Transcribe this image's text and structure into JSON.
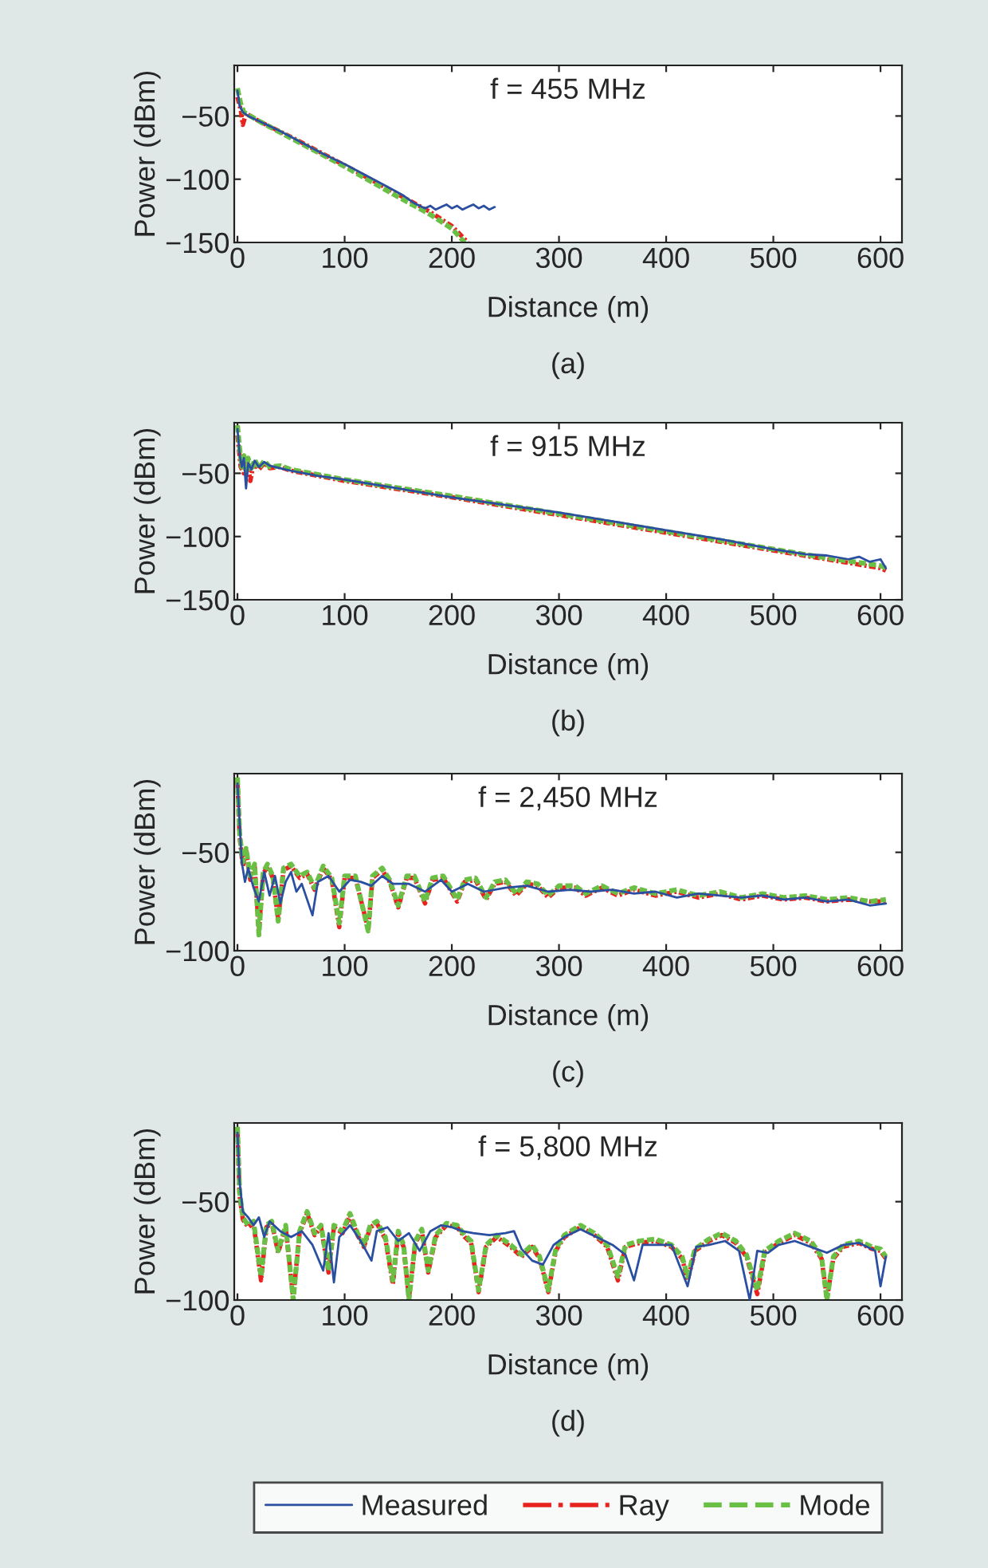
{
  "chart_data": [
    {
      "type": "line",
      "title": "f = 455 MHz",
      "xlabel": "Distance (m)",
      "ylabel": "Power (dBm)",
      "annotations": [
        "(a)"
      ],
      "xlim": [
        -3,
        620
      ],
      "ylim": [
        -150,
        -10
      ],
      "xticks": [
        0,
        100,
        200,
        300,
        400,
        500,
        600
      ],
      "yticks": [
        -150,
        -100,
        -50
      ],
      "grid": false,
      "legend": false,
      "series": [
        {
          "color": "#2a4ea0",
          "line_style": "solid",
          "x": [
            0,
            2,
            5,
            10,
            20,
            40,
            60,
            80,
            100,
            120,
            140,
            155,
            160,
            165,
            170,
            175,
            180,
            185,
            190,
            195,
            200,
            205,
            210,
            215,
            220,
            225,
            230,
            235,
            240
          ],
          "values": [
            -30,
            -42,
            -47,
            -50,
            -54,
            -62,
            -71,
            -80,
            -88,
            -97,
            -106,
            -113,
            -116,
            -119,
            -121,
            -123,
            -121,
            -124,
            -122,
            -120,
            -123,
            -121,
            -124,
            -122,
            -120,
            -123,
            -121,
            -124,
            -122
          ]
        },
        {
          "color": "#e8231f",
          "line_style": "dashdot",
          "x": [
            0,
            3,
            5,
            8,
            20,
            60,
            100,
            150,
            180,
            200,
            215
          ],
          "values": [
            -35,
            -45,
            -57,
            -48,
            -54,
            -71,
            -89,
            -112,
            -126,
            -137,
            -150
          ]
        },
        {
          "color": "#6abf45",
          "line_style": "dashed",
          "x": [
            0,
            3,
            6,
            20,
            60,
            100,
            150,
            180,
            200,
            212
          ],
          "values": [
            -28,
            -40,
            -47,
            -54,
            -72,
            -90,
            -114,
            -128,
            -139,
            -150
          ]
        }
      ]
    },
    {
      "type": "line",
      "title": "f = 915 MHz",
      "xlabel": "Distance (m)",
      "ylabel": "Power (dBm)",
      "annotations": [
        "(b)"
      ],
      "xlim": [
        -3,
        620
      ],
      "ylim": [
        -150,
        -10
      ],
      "xticks": [
        0,
        100,
        200,
        300,
        400,
        500,
        600
      ],
      "yticks": [
        -150,
        -100,
        -50
      ],
      "grid": false,
      "legend": false,
      "series": [
        {
          "color": "#2a4ea0",
          "line_style": "solid",
          "x": [
            0,
            2,
            4,
            6,
            8,
            10,
            13,
            16,
            20,
            25,
            30,
            40,
            50,
            75,
            100,
            150,
            200,
            250,
            300,
            350,
            400,
            450,
            500,
            530,
            550,
            570,
            580,
            590,
            600,
            605
          ],
          "values": [
            -15,
            -35,
            -45,
            -38,
            -62,
            -42,
            -47,
            -40,
            -45,
            -41,
            -44,
            -46,
            -48,
            -52,
            -55,
            -62,
            -69,
            -75,
            -81,
            -88,
            -95,
            -102,
            -110,
            -114,
            -115,
            -118,
            -116,
            -120,
            -118,
            -125
          ]
        },
        {
          "color": "#e8231f",
          "line_style": "dashdot",
          "x": [
            0,
            3,
            6,
            9,
            12,
            15,
            20,
            25,
            30,
            40,
            50,
            100,
            200,
            300,
            400,
            500,
            550,
            600,
            605
          ],
          "values": [
            -20,
            -45,
            -50,
            -40,
            -56,
            -42,
            -47,
            -42,
            -46,
            -45,
            -48,
            -56,
            -69,
            -83,
            -97,
            -111,
            -118,
            -125,
            -127
          ]
        },
        {
          "color": "#6abf45",
          "line_style": "dashed",
          "x": [
            0,
            2,
            4,
            6,
            8,
            10,
            13,
            16,
            20,
            25,
            30,
            40,
            50,
            100,
            200,
            300,
            400,
            500,
            550,
            600,
            605
          ],
          "values": [
            -12,
            -30,
            -45,
            -36,
            -50,
            -38,
            -48,
            -39,
            -46,
            -40,
            -45,
            -44,
            -47,
            -55,
            -68,
            -82,
            -96,
            -110,
            -117,
            -123,
            -125
          ]
        }
      ]
    },
    {
      "type": "line",
      "title": "f = 2,450 MHz",
      "xlabel": "Distance (m)",
      "ylabel": "Power (dBm)",
      "annotations": [
        "(c)"
      ],
      "xlim": [
        -3,
        620
      ],
      "ylim": [
        -100,
        -10
      ],
      "xticks": [
        0,
        100,
        200,
        300,
        400,
        500,
        600
      ],
      "yticks": [
        -100,
        -50
      ],
      "grid": false,
      "legend": false,
      "series": [
        {
          "color": "#2a4ea0",
          "line_style": "solid",
          "x": [
            0,
            2,
            4,
            7,
            10,
            15,
            20,
            25,
            30,
            35,
            40,
            45,
            50,
            55,
            60,
            70,
            75,
            85,
            95,
            105,
            115,
            125,
            135,
            145,
            160,
            175,
            190,
            200,
            215,
            230,
            250,
            270,
            290,
            310,
            330,
            350,
            370,
            390,
            410,
            430,
            450,
            470,
            490,
            510,
            530,
            550,
            570,
            590,
            605
          ],
          "values": [
            -15,
            -35,
            -55,
            -65,
            -58,
            -68,
            -75,
            -60,
            -72,
            -62,
            -76,
            -65,
            -60,
            -70,
            -66,
            -82,
            -65,
            -62,
            -70,
            -64,
            -65,
            -67,
            -62,
            -66,
            -66,
            -70,
            -64,
            -70,
            -66,
            -70,
            -68,
            -67,
            -70,
            -69,
            -70,
            -69,
            -71,
            -70,
            -73,
            -71,
            -72,
            -73,
            -72,
            -74,
            -73,
            -75,
            -74,
            -77,
            -76
          ]
        },
        {
          "color": "#e8231f",
          "line_style": "dashdot",
          "x": [
            0,
            2,
            5,
            8,
            12,
            16,
            20,
            24,
            28,
            33,
            38,
            43,
            50,
            58,
            65,
            72,
            80,
            88,
            95,
            100,
            110,
            122,
            126,
            135,
            142,
            150,
            158,
            165,
            175,
            182,
            192,
            205,
            212,
            222,
            232,
            240,
            250,
            260,
            270,
            280,
            290,
            300,
            315,
            325,
            340,
            355,
            370,
            390,
            410,
            430,
            450,
            470,
            490,
            510,
            530,
            550,
            570,
            590,
            605
          ],
          "values": [
            -14,
            -42,
            -57,
            -49,
            -64,
            -57,
            -90,
            -61,
            -57,
            -63,
            -84,
            -59,
            -57,
            -63,
            -61,
            -69,
            -58,
            -64,
            -88,
            -63,
            -63,
            -89,
            -63,
            -59,
            -65,
            -78,
            -63,
            -63,
            -76,
            -64,
            -63,
            -75,
            -65,
            -64,
            -74,
            -66,
            -65,
            -72,
            -66,
            -67,
            -73,
            -68,
            -68,
            -72,
            -68,
            -72,
            -69,
            -72,
            -70,
            -73,
            -71,
            -74,
            -72,
            -74,
            -73,
            -75,
            -74,
            -75,
            -75
          ]
        },
        {
          "color": "#6abf45",
          "line_style": "dashed",
          "x": [
            0,
            2,
            5,
            8,
            12,
            16,
            20,
            24,
            28,
            33,
            38,
            43,
            50,
            58,
            65,
            72,
            80,
            88,
            95,
            100,
            110,
            122,
            126,
            135,
            142,
            150,
            158,
            165,
            175,
            182,
            192,
            205,
            212,
            222,
            232,
            240,
            250,
            260,
            270,
            280,
            290,
            300,
            315,
            325,
            340,
            355,
            370,
            390,
            410,
            430,
            450,
            470,
            490,
            510,
            530,
            550,
            570,
            590,
            605
          ],
          "values": [
            -12,
            -40,
            -55,
            -48,
            -62,
            -56,
            -92,
            -60,
            -56,
            -62,
            -85,
            -58,
            -56,
            -62,
            -60,
            -68,
            -57,
            -63,
            -86,
            -62,
            -62,
            -90,
            -62,
            -58,
            -64,
            -77,
            -62,
            -62,
            -75,
            -63,
            -62,
            -74,
            -64,
            -63,
            -73,
            -65,
            -64,
            -71,
            -65,
            -66,
            -72,
            -67,
            -67,
            -71,
            -67,
            -71,
            -68,
            -71,
            -69,
            -72,
            -70,
            -73,
            -71,
            -73,
            -72,
            -74,
            -73,
            -75,
            -74
          ]
        }
      ]
    },
    {
      "type": "line",
      "title": "f = 5,800 MHz",
      "xlabel": "Distance (m)",
      "ylabel": "Power (dBm)",
      "annotations": [
        "(d)"
      ],
      "xlim": [
        -3,
        620
      ],
      "ylim": [
        -100,
        -10
      ],
      "xticks": [
        0,
        100,
        200,
        300,
        400,
        500,
        600
      ],
      "yticks": [
        -100,
        -50
      ],
      "grid": false,
      "legend": "bottom",
      "series": [
        {
          "name": "Measured",
          "color": "#2a4ea0",
          "line_style": "solid",
          "x": [
            0,
            2,
            5,
            10,
            15,
            20,
            25,
            30,
            40,
            50,
            60,
            70,
            80,
            85,
            90,
            95,
            105,
            115,
            125,
            130,
            140,
            150,
            160,
            170,
            180,
            190,
            200,
            210,
            220,
            235,
            250,
            258,
            265,
            275,
            285,
            295,
            305,
            320,
            335,
            350,
            362,
            370,
            378,
            390,
            405,
            420,
            428,
            440,
            455,
            468,
            478,
            485,
            495,
            505,
            520,
            535,
            550,
            565,
            580,
            595,
            600,
            605
          ],
          "values": [
            -15,
            -40,
            -55,
            -58,
            -62,
            -58,
            -68,
            -60,
            -65,
            -68,
            -65,
            -72,
            -85,
            -66,
            -91,
            -68,
            -62,
            -70,
            -80,
            -65,
            -63,
            -70,
            -66,
            -75,
            -65,
            -62,
            -63,
            -65,
            -66,
            -67,
            -66,
            -65,
            -74,
            -80,
            -82,
            -72,
            -68,
            -64,
            -68,
            -72,
            -77,
            -90,
            -72,
            -72,
            -72,
            -93,
            -73,
            -72,
            -70,
            -75,
            -100,
            -75,
            -76,
            -72,
            -70,
            -73,
            -76,
            -72,
            -71,
            -75,
            -93,
            -78
          ]
        },
        {
          "name": "Ray",
          "color": "#e8231f",
          "line_style": "dashdot",
          "x": [
            0,
            2,
            5,
            10,
            15,
            22,
            27,
            32,
            38,
            45,
            52,
            58,
            65,
            72,
            78,
            85,
            90,
            98,
            105,
            112,
            118,
            124,
            130,
            138,
            145,
            150,
            155,
            160,
            166,
            172,
            178,
            185,
            195,
            205,
            212,
            218,
            225,
            232,
            242,
            255,
            265,
            275,
            282,
            290,
            297,
            305,
            320,
            333,
            345,
            355,
            362,
            375,
            390,
            405,
            415,
            420,
            427,
            440,
            452,
            465,
            475,
            485,
            492,
            505,
            520,
            535,
            545,
            550,
            556,
            565,
            580,
            592,
            600,
            605
          ],
          "values": [
            -14,
            -47,
            -59,
            -63,
            -61,
            -90,
            -63,
            -61,
            -76,
            -63,
            -99,
            -66,
            -56,
            -67,
            -63,
            -86,
            -63,
            -66,
            -57,
            -67,
            -73,
            -63,
            -61,
            -69,
            -92,
            -66,
            -73,
            -99,
            -71,
            -65,
            -86,
            -68,
            -62,
            -63,
            -68,
            -71,
            -96,
            -73,
            -68,
            -73,
            -78,
            -73,
            -79,
            -96,
            -75,
            -68,
            -63,
            -67,
            -73,
            -90,
            -73,
            -71,
            -70,
            -73,
            -79,
            -90,
            -75,
            -70,
            -67,
            -71,
            -78,
            -97,
            -76,
            -71,
            -67,
            -71,
            -79,
            -99,
            -79,
            -73,
            -71,
            -74,
            -75,
            -79
          ]
        },
        {
          "name": "Mode",
          "color": "#6abf45",
          "line_style": "dashed",
          "x": [
            0,
            2,
            5,
            10,
            15,
            22,
            27,
            32,
            38,
            45,
            52,
            58,
            65,
            72,
            78,
            85,
            90,
            98,
            105,
            112,
            118,
            124,
            130,
            138,
            145,
            150,
            155,
            160,
            166,
            172,
            178,
            185,
            195,
            205,
            212,
            218,
            225,
            232,
            242,
            255,
            265,
            275,
            282,
            290,
            297,
            305,
            320,
            333,
            345,
            355,
            362,
            375,
            390,
            405,
            415,
            420,
            427,
            440,
            452,
            465,
            475,
            485,
            492,
            505,
            520,
            535,
            545,
            550,
            556,
            565,
            580,
            592,
            600,
            605
          ],
          "values": [
            -12,
            -45,
            -58,
            -62,
            -60,
            -88,
            -62,
            -60,
            -75,
            -62,
            -100,
            -65,
            -55,
            -66,
            -62,
            -85,
            -62,
            -65,
            -56,
            -66,
            -72,
            -62,
            -60,
            -68,
            -90,
            -65,
            -72,
            -100,
            -70,
            -64,
            -85,
            -67,
            -61,
            -62,
            -67,
            -70,
            -95,
            -72,
            -67,
            -72,
            -77,
            -72,
            -78,
            -95,
            -74,
            -67,
            -62,
            -66,
            -72,
            -88,
            -72,
            -70,
            -69,
            -72,
            -78,
            -88,
            -74,
            -69,
            -66,
            -70,
            -77,
            -95,
            -75,
            -70,
            -66,
            -70,
            -78,
            -100,
            -78,
            -72,
            -70,
            -73,
            -74,
            -78
          ]
        }
      ]
    }
  ]
}
